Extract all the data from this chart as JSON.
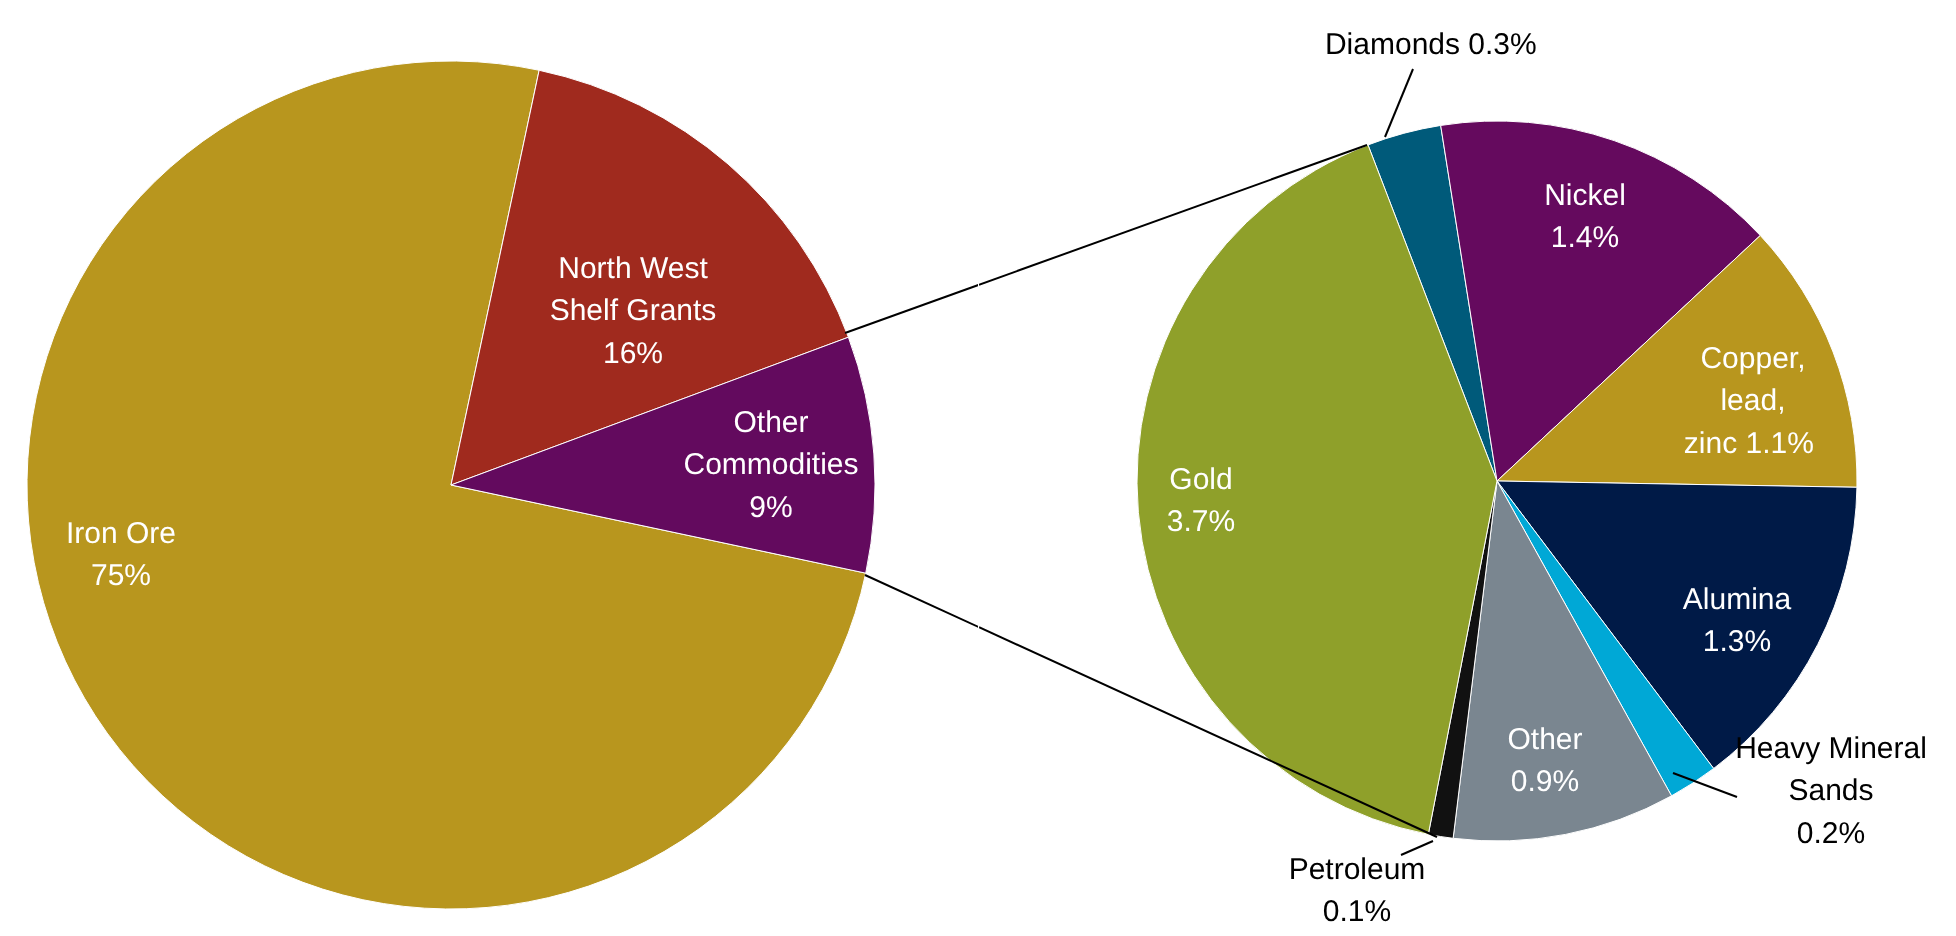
{
  "chart_data": [
    {
      "type": "pie",
      "categories": [
        "Iron Ore",
        "North West Shelf Grants",
        "Other Commodities"
      ],
      "values": [
        75,
        16,
        9
      ],
      "colors": [
        "#b8961e",
        "#a02a1e",
        "#630a5e"
      ],
      "value_labels": [
        "75%",
        "16%",
        "9%"
      ]
    },
    {
      "type": "pie",
      "categories": [
        "Diamonds",
        "Nickel",
        "Copper, lead, zinc",
        "Alumina",
        "Heavy Mineral Sands",
        "Other",
        "Petroleum",
        "Gold"
      ],
      "values": [
        0.3,
        1.4,
        1.1,
        1.3,
        0.2,
        0.9,
        0.1,
        3.7
      ],
      "colors": [
        "#005a7a",
        "#650a5e",
        "#b8961e",
        "#001a47",
        "#00a8d6",
        "#7a8690",
        "#111111",
        "#8fa02a"
      ],
      "value_labels": [
        "0.3%",
        "1.4%",
        "1.1%",
        "1.3%",
        "0.2%",
        "0.9%",
        "0.1%",
        "3.7%"
      ]
    }
  ]
}
